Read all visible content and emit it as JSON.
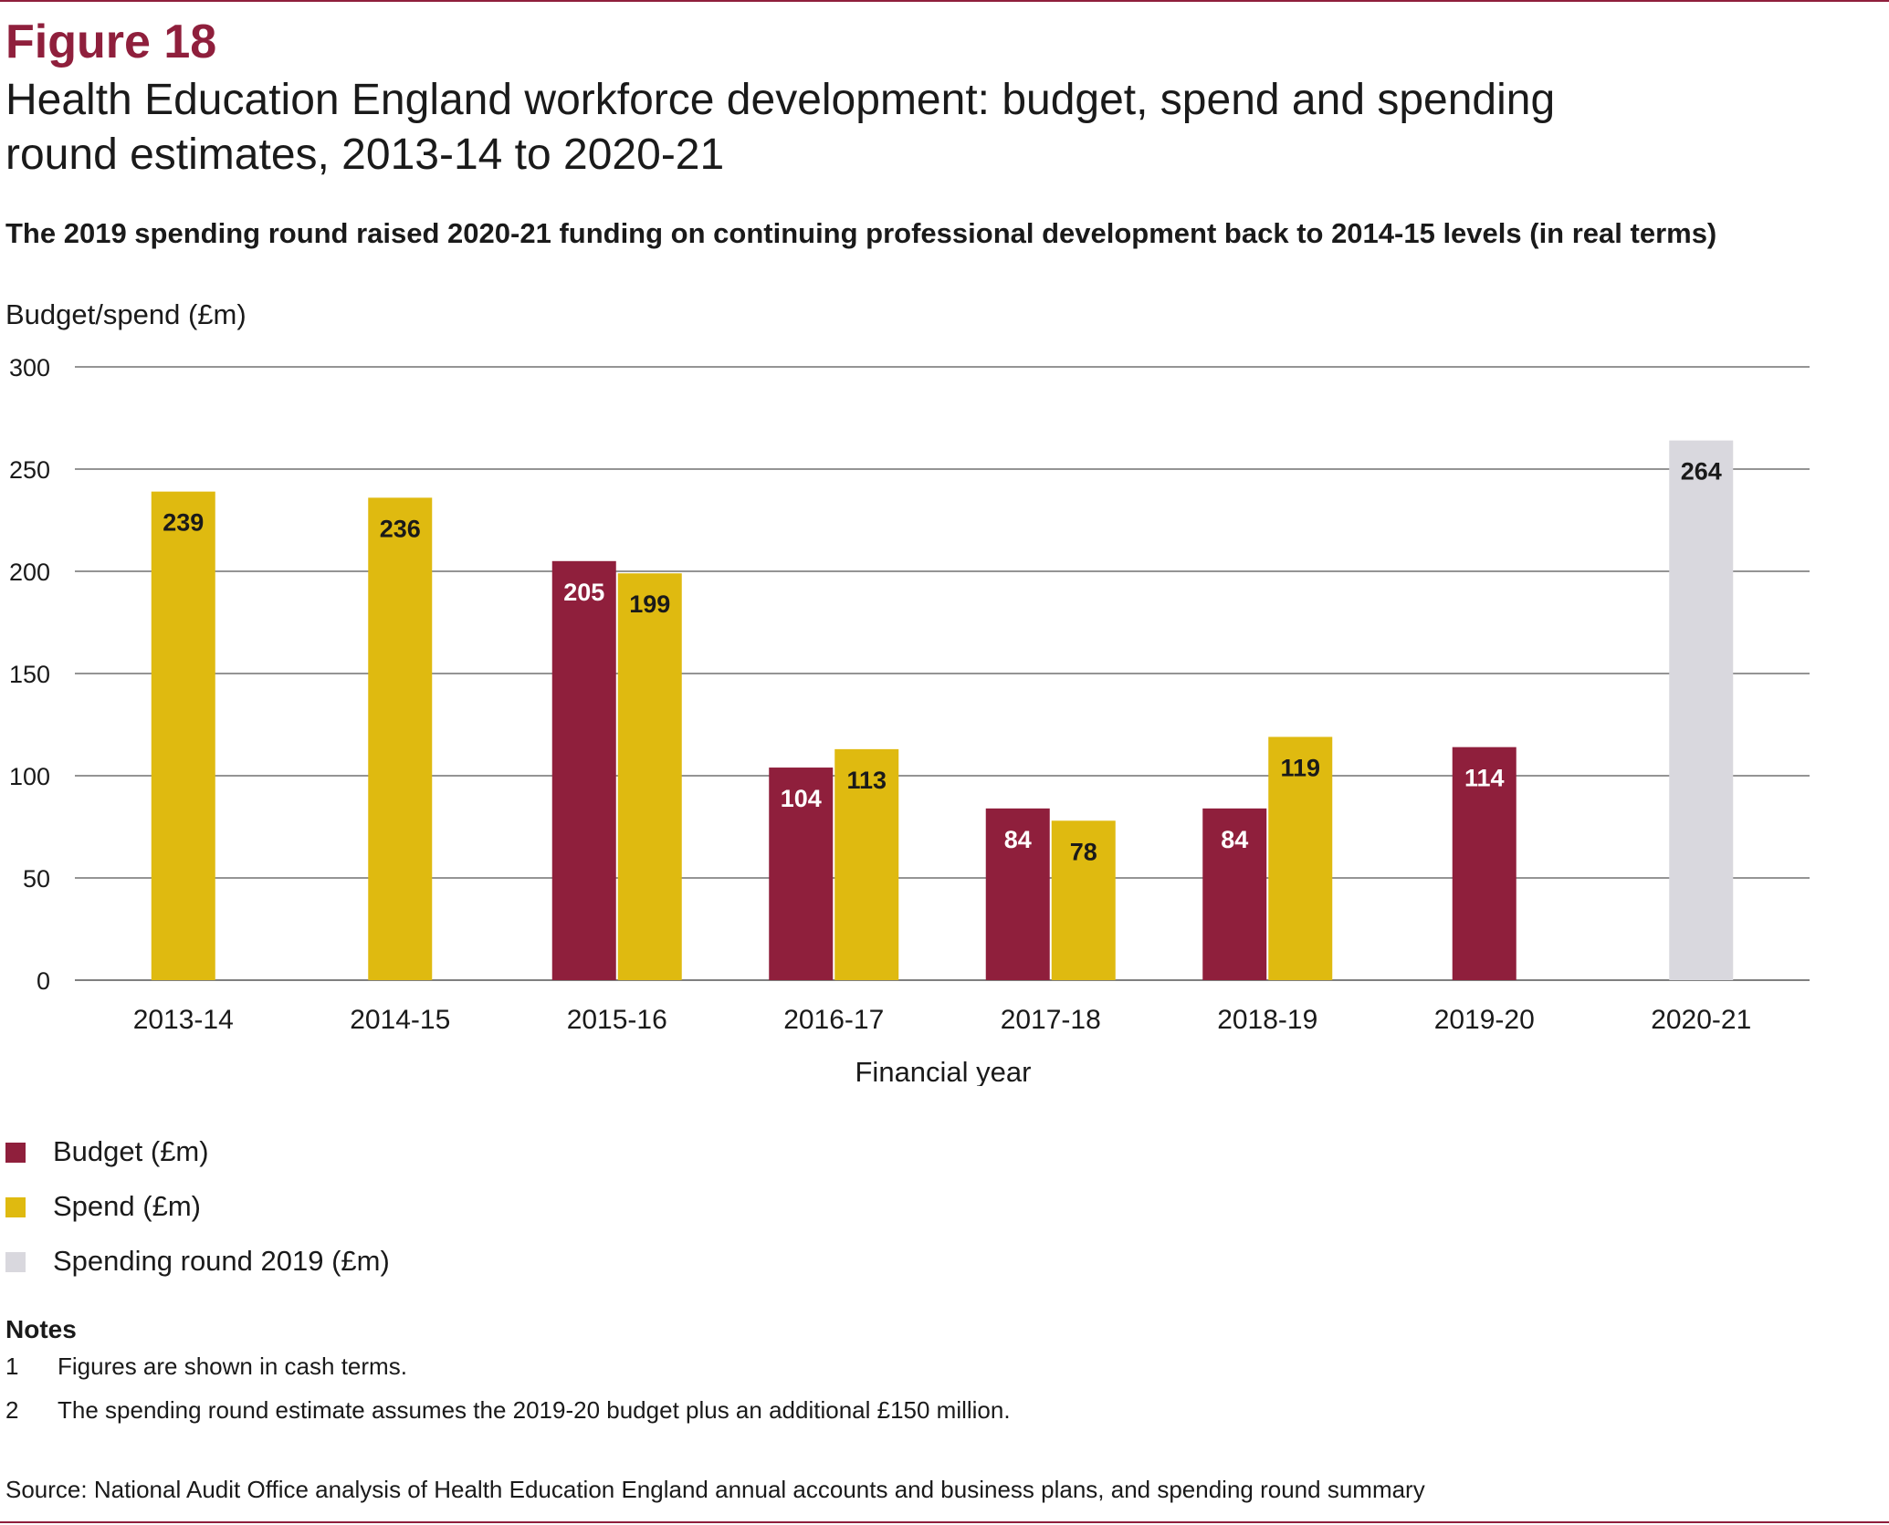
{
  "figure": {
    "label": "Figure 18",
    "title": "Health Education England workforce development: budget, spend and spending round estimates, 2013-14 to 2020-21",
    "subtitle": "The 2019 spending round raised 2020-21 funding on continuing professional development back to 2014-15 levels (in real terms)"
  },
  "colors": {
    "budget": "#8f1f3c",
    "spend": "#dfba10",
    "spending_round": "#d9d8de",
    "accent": "#8f1f3c"
  },
  "chart_data": {
    "type": "bar",
    "ylabel": "Budget/spend (£m)",
    "xlabel": "Financial year",
    "ylim": [
      0,
      300
    ],
    "yticks": [
      0,
      50,
      100,
      150,
      200,
      250,
      300
    ],
    "grid": true,
    "legend_position": "bottom-left",
    "categories": [
      "2013-14",
      "2014-15",
      "2015-16",
      "2016-17",
      "2017-18",
      "2018-19",
      "2019-20",
      "2020-21"
    ],
    "series": [
      {
        "name": "Budget (£m)",
        "color": "#8f1f3c",
        "label_color": "#ffffff",
        "values": [
          null,
          null,
          205,
          104,
          84,
          84,
          114,
          null
        ]
      },
      {
        "name": "Spend (£m)",
        "color": "#dfba10",
        "label_color": "#1a1a1a",
        "values": [
          239,
          236,
          199,
          113,
          78,
          119,
          null,
          null
        ]
      },
      {
        "name": "Spending round 2019 (£m)",
        "color": "#d9d8de",
        "label_color": "#1a1a1a",
        "values": [
          null,
          null,
          null,
          null,
          null,
          null,
          null,
          264
        ]
      }
    ]
  },
  "legend": {
    "items": [
      {
        "label": "Budget (£m)",
        "color": "#8f1f3c"
      },
      {
        "label": "Spend (£m)",
        "color": "#dfba10"
      },
      {
        "label": "Spending round 2019 (£m)",
        "color": "#d9d8de"
      }
    ]
  },
  "notes": {
    "heading": "Notes",
    "items": [
      {
        "number": "1",
        "text": "Figures are shown in cash terms."
      },
      {
        "number": "2",
        "text": "The spending round estimate assumes the 2019-20 budget plus an additional £150 million."
      }
    ]
  },
  "source": "Source: National Audit Office analysis of Health Education England annual accounts and business plans, and spending round summary"
}
